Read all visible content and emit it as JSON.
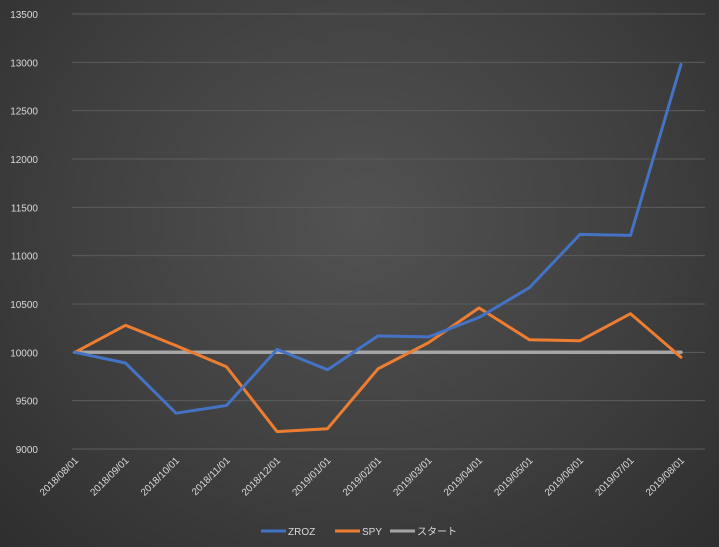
{
  "chart_data": {
    "type": "line",
    "title": "",
    "xlabel": "",
    "ylabel": "",
    "categories": [
      "2018/08/01",
      "2018/09/01",
      "2018/10/01",
      "2018/11/01",
      "2018/12/01",
      "2019/01/01",
      "2019/02/01",
      "2019/03/01",
      "2019/04/01",
      "2019/05/01",
      "2019/06/01",
      "2019/07/01",
      "2019/08/01"
    ],
    "ylim": [
      9000,
      13500
    ],
    "yticks": [
      9000,
      9500,
      10000,
      10500,
      11000,
      11500,
      12000,
      12500,
      13000,
      13500
    ],
    "grid": true,
    "legend_position": "bottom",
    "series": [
      {
        "name": "ZROZ",
        "color": "#4472c4",
        "values": [
          10000,
          9890,
          9370,
          9450,
          10030,
          9820,
          10170,
          10160,
          10360,
          10670,
          11220,
          11210,
          12980
        ]
      },
      {
        "name": "SPY",
        "color": "#ed7d31",
        "values": [
          10000,
          10280,
          10070,
          9850,
          9180,
          9210,
          9830,
          10100,
          10460,
          10130,
          10120,
          10400,
          9950
        ]
      },
      {
        "name": "スタート",
        "color": "#a5a5a5",
        "values": [
          10000,
          10000,
          10000,
          10000,
          10000,
          10000,
          10000,
          10000,
          10000,
          10000,
          10000,
          10000,
          10000
        ]
      }
    ]
  }
}
